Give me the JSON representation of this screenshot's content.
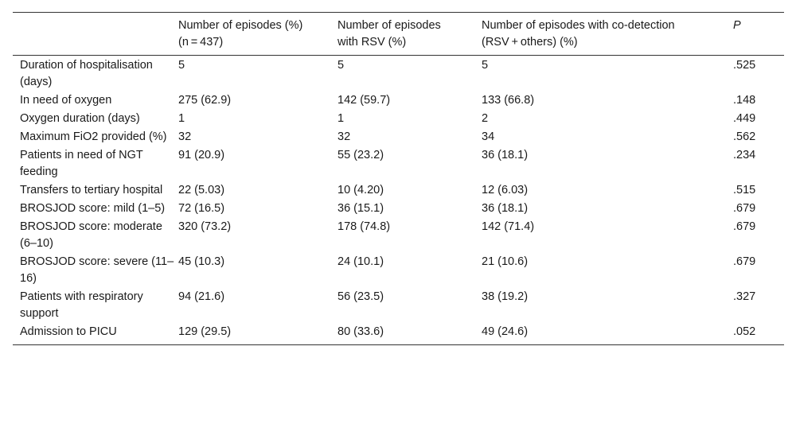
{
  "table": {
    "headers": [
      {
        "line1": "",
        "line2": ""
      },
      {
        "line1": "Number of episodes (%)",
        "line2": "(n = 437)"
      },
      {
        "line1": "Number of episodes",
        "line2": "with RSV (%)"
      },
      {
        "line1": "Number of episodes with co-detection",
        "line2": "(RSV + others) (%)"
      },
      {
        "line1": "P",
        "line2": ""
      }
    ],
    "rows": [
      {
        "label": "Duration of hospitalisation (days)",
        "all": "5",
        "rsv": "5",
        "codetection": "5",
        "p": ".525"
      },
      {
        "label": "In need of oxygen",
        "all": "275 (62.9)",
        "rsv": "142 (59.7)",
        "codetection": "133 (66.8)",
        "p": ".148"
      },
      {
        "label": "Oxygen duration (days)",
        "all": "1",
        "rsv": "1",
        "codetection": "2",
        "p": ".449"
      },
      {
        "label": "Maximum FiO2 provided (%)",
        "all": "32",
        "rsv": "32",
        "codetection": "34",
        "p": ".562"
      },
      {
        "label": "Patients in need of NGT feeding",
        "all": "91 (20.9)",
        "rsv": "55 (23.2)",
        "codetection": "36 (18.1)",
        "p": ".234"
      },
      {
        "label": "Transfers to tertiary hospital",
        "all": "22 (5.03)",
        "rsv": "10 (4.20)",
        "codetection": "12 (6.03)",
        "p": ".515"
      },
      {
        "label": "BROSJOD score: mild (1–5)",
        "all": "72 (16.5)",
        "rsv": "36 (15.1)",
        "codetection": "36 (18.1)",
        "p": ".679"
      },
      {
        "label": "BROSJOD score: moderate (6–10)",
        "all": "320 (73.2)",
        "rsv": "178 (74.8)",
        "codetection": "142 (71.4)",
        "p": ".679"
      },
      {
        "label": "BROSJOD score: severe (11–16)",
        "all": "45 (10.3)",
        "rsv": "24 (10.1)",
        "codetection": "21 (10.6)",
        "p": ".679"
      },
      {
        "label": "Patients with respiratory support",
        "all": "94 (21.6)",
        "rsv": "56 (23.5)",
        "codetection": "38 (19.2)",
        "p": ".327"
      },
      {
        "label": "Admission to PICU",
        "all": "129 (29.5)",
        "rsv": "80 (33.6)",
        "codetection": "49 (24.6)",
        "p": ".052"
      }
    ]
  }
}
